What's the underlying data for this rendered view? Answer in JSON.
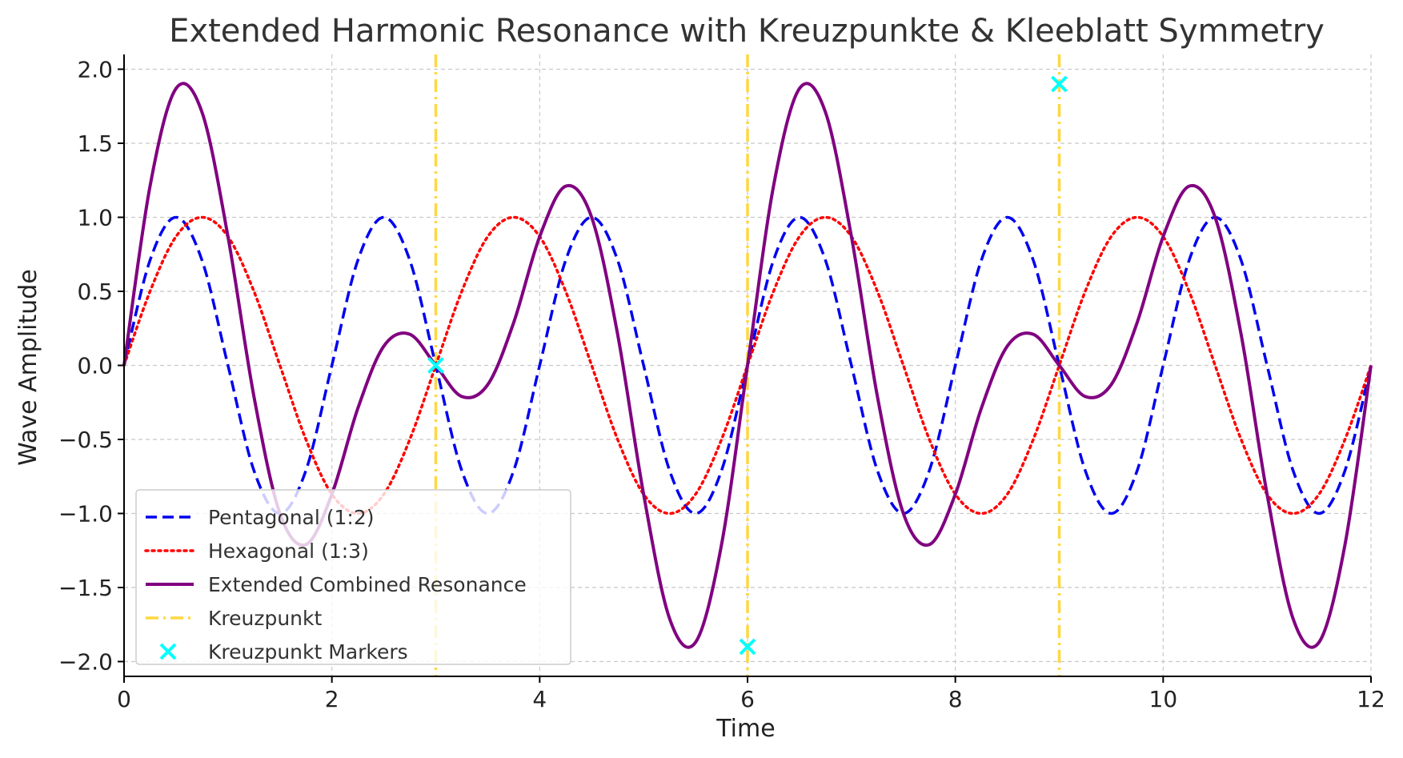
{
  "chart_data": {
    "type": "line",
    "title": "Extended Harmonic Resonance with Kreuzpunkte & Kleeblatt Symmetry",
    "xlabel": "Time",
    "ylabel": "Wave Amplitude",
    "xlim": [
      0,
      12
    ],
    "ylim": [
      -2.1,
      2.1
    ],
    "x_ticks": [
      0,
      2,
      4,
      6,
      8,
      10,
      12
    ],
    "x_tick_labels": [
      "0",
      "2",
      "4",
      "6",
      "8",
      "10",
      "12"
    ],
    "y_ticks": [
      2.0,
      1.5,
      1.0,
      0.5,
      0.0,
      -0.5,
      -1.0,
      -1.5,
      -2.0
    ],
    "y_tick_labels": [
      "2.0",
      "1.5",
      "1.0",
      "0.5",
      "0.0",
      "−0.5",
      "−1.0",
      "−1.5",
      "−2.0"
    ],
    "grid": true,
    "legend_position": "lower-left",
    "series": [
      {
        "name": "Pentagonal (1:2)",
        "color": "#0000ee",
        "style": "dashed",
        "formula": "sin(pi*t/... )",
        "x": [
          0.0,
          0.25,
          0.5,
          0.75,
          1.0,
          1.25,
          1.5,
          1.75,
          2.0,
          2.25,
          2.5,
          2.75,
          3.0,
          3.25,
          3.5,
          3.75,
          4.0,
          4.25,
          4.5,
          4.75,
          5.0,
          5.25,
          5.5,
          5.75,
          6.0,
          6.25,
          6.5,
          6.75,
          7.0,
          7.25,
          7.5,
          7.75,
          8.0,
          8.25,
          8.5,
          8.75,
          9.0,
          9.25,
          9.5,
          9.75,
          10.0,
          10.25,
          10.5,
          10.75,
          11.0,
          11.25,
          11.5,
          11.75,
          12.0
        ],
        "y": [
          0.0,
          0.71,
          1.0,
          0.71,
          0.0,
          -0.71,
          -1.0,
          -0.71,
          0.0,
          0.71,
          1.0,
          0.71,
          0.0,
          -0.71,
          -1.0,
          -0.71,
          0.0,
          0.71,
          1.0,
          0.71,
          0.0,
          -0.71,
          -1.0,
          -0.71,
          0.0,
          0.71,
          1.0,
          0.71,
          0.0,
          -0.71,
          -1.0,
          -0.71,
          0.0,
          0.71,
          1.0,
          0.71,
          0.0,
          -0.71,
          -1.0,
          -0.71,
          0.0,
          0.71,
          1.0,
          0.71,
          0.0,
          -0.71,
          -1.0,
          -0.71,
          0.0
        ]
      },
      {
        "name": "Hexagonal (1:3)",
        "color": "#ff0000",
        "style": "dotted",
        "x": [
          0.0,
          0.25,
          0.5,
          0.75,
          1.0,
          1.25,
          1.5,
          1.75,
          2.0,
          2.25,
          2.5,
          2.75,
          3.0,
          3.25,
          3.5,
          3.75,
          4.0,
          4.25,
          4.5,
          4.75,
          5.0,
          5.25,
          5.5,
          5.75,
          6.0,
          6.25,
          6.5,
          6.75,
          7.0,
          7.25,
          7.5,
          7.75,
          8.0,
          8.25,
          8.5,
          8.75,
          9.0,
          9.25,
          9.5,
          9.75,
          10.0,
          10.25,
          10.5,
          10.75,
          11.0,
          11.25,
          11.5,
          11.75,
          12.0
        ],
        "y": [
          0.0,
          0.5,
          0.87,
          1.0,
          0.87,
          0.5,
          0.0,
          -0.5,
          -0.87,
          -1.0,
          -0.87,
          -0.5,
          0.0,
          0.5,
          0.87,
          1.0,
          0.87,
          0.5,
          0.0,
          -0.5,
          -0.87,
          -1.0,
          -0.87,
          -0.5,
          0.0,
          0.5,
          0.87,
          1.0,
          0.87,
          0.5,
          0.0,
          -0.5,
          -0.87,
          -1.0,
          -0.87,
          -0.5,
          0.0,
          0.5,
          0.87,
          1.0,
          0.87,
          0.5,
          0.0,
          -0.5,
          -0.87,
          -1.0,
          -0.87,
          -0.5,
          0.0
        ]
      },
      {
        "name": "Extended Combined Resonance",
        "color": "#800080",
        "style": "solid",
        "x": [
          0.0,
          0.25,
          0.5,
          0.75,
          1.0,
          1.25,
          1.5,
          1.75,
          2.0,
          2.25,
          2.5,
          2.75,
          3.0,
          3.25,
          3.5,
          3.75,
          4.0,
          4.25,
          4.5,
          4.75,
          5.0,
          5.25,
          5.5,
          5.75,
          6.0,
          6.25,
          6.5,
          6.75,
          7.0,
          7.25,
          7.5,
          7.75,
          8.0,
          8.25,
          8.5,
          8.75,
          9.0,
          9.25,
          9.5,
          9.75,
          10.0,
          10.25,
          10.5,
          10.75,
          11.0,
          11.25,
          11.5,
          11.75,
          12.0
        ],
        "y": [
          0.0,
          1.21,
          1.87,
          1.71,
          0.87,
          -0.21,
          -1.0,
          -1.21,
          -0.87,
          -0.29,
          0.13,
          0.21,
          0.0,
          -0.21,
          -0.13,
          0.29,
          0.87,
          1.21,
          1.0,
          0.21,
          -0.87,
          -1.71,
          -1.87,
          -1.21,
          0.0,
          1.21,
          1.87,
          1.71,
          0.87,
          -0.21,
          -1.0,
          -1.21,
          -0.87,
          -0.29,
          0.13,
          0.21,
          0.0,
          -0.21,
          -0.13,
          0.29,
          0.87,
          1.21,
          1.0,
          0.21,
          -0.87,
          -1.71,
          -1.87,
          -1.21,
          0.0
        ]
      }
    ],
    "vlines": {
      "name": "Kreuzpunkt",
      "color": "#ffd740",
      "style": "dashdot",
      "x": [
        3,
        6,
        9
      ]
    },
    "markers": {
      "name": "Kreuzpunkt Markers",
      "color": "#00ffff",
      "symbol": "x",
      "points": [
        {
          "x": 3,
          "y": 0.0
        },
        {
          "x": 6,
          "y": -1.9
        },
        {
          "x": 9,
          "y": 1.9
        }
      ]
    },
    "legend": [
      {
        "label": "Pentagonal (1:2)",
        "color": "#0000ee",
        "style": "dashed"
      },
      {
        "label": "Hexagonal (1:3)",
        "color": "#ff0000",
        "style": "dotted"
      },
      {
        "label": "Extended Combined Resonance",
        "color": "#800080",
        "style": "solid"
      },
      {
        "label": "Kreuzpunkt",
        "color": "#ffd740",
        "style": "dashdot"
      },
      {
        "label": "Kreuzpunkt Markers",
        "color": "#00ffff",
        "style": "marker-x"
      }
    ]
  }
}
